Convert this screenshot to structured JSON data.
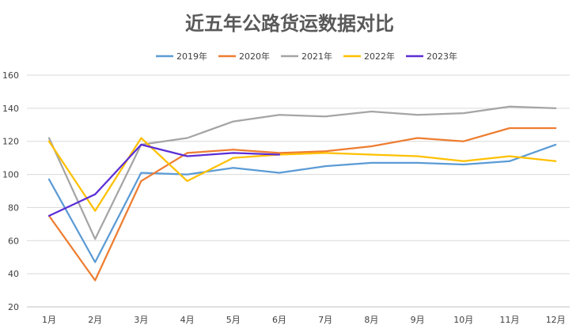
{
  "chart_data": {
    "type": "line",
    "title": "近五年公路货运数据对比",
    "xlabel": "",
    "ylabel": "",
    "categories": [
      "1月",
      "2月",
      "3月",
      "4月",
      "5月",
      "6月",
      "7月",
      "8月",
      "9月",
      "10月",
      "11月",
      "12月"
    ],
    "ylim": [
      20,
      160
    ],
    "yticks": [
      20,
      40,
      60,
      80,
      100,
      120,
      140,
      160
    ],
    "grid": true,
    "legend_position": "top",
    "series": [
      {
        "name": "2019年",
        "color": "#5b9bd5",
        "values": [
          97,
          47,
          101,
          100,
          104,
          101,
          105,
          107,
          107,
          106,
          108,
          118
        ]
      },
      {
        "name": "2020年",
        "color": "#ed7d31",
        "values": [
          75,
          36,
          96,
          113,
          115,
          113,
          114,
          117,
          122,
          120,
          128,
          128
        ]
      },
      {
        "name": "2021年",
        "color": "#a5a5a5",
        "values": [
          122,
          61,
          118,
          122,
          132,
          136,
          135,
          138,
          136,
          137,
          141,
          140
        ]
      },
      {
        "name": "2022年",
        "color": "#ffc000",
        "values": [
          120,
          78,
          122,
          96,
          110,
          112,
          113,
          112,
          111,
          108,
          111,
          108
        ]
      },
      {
        "name": "2023年",
        "color": "#5b2ed6",
        "values": [
          75,
          88,
          118,
          111,
          113,
          112,
          null,
          null,
          null,
          null,
          null,
          null
        ]
      }
    ]
  }
}
